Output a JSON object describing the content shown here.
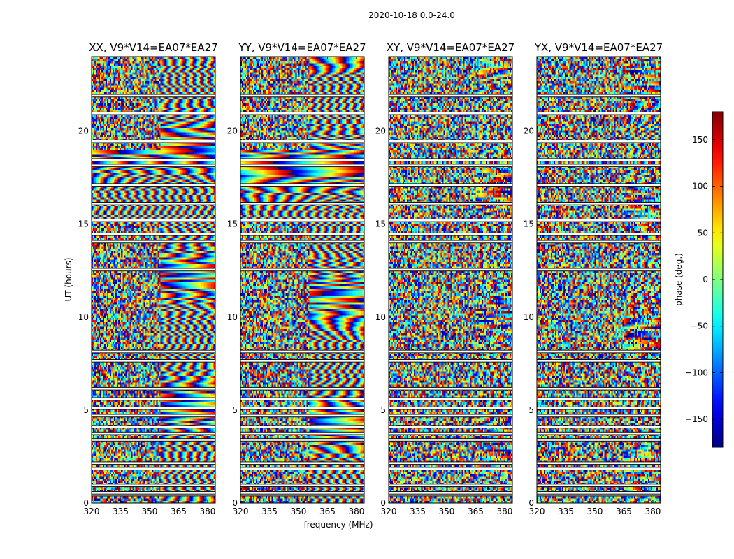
{
  "figure": {
    "suptitle": "2020-10-18 0.0-24.0",
    "xlabel": "frequency (MHz)",
    "ylabel": "UT (hours)"
  },
  "colorbar": {
    "label": "phase (deg.)",
    "range": [
      -180,
      180
    ],
    "ticks": [
      -150,
      -100,
      -50,
      0,
      50,
      100,
      150
    ],
    "tick_labels": [
      "−150",
      "−100",
      "−50",
      "0",
      "50",
      "100",
      "150"
    ],
    "colormap": "jet",
    "colors": [
      "#00007f",
      "#0000ff",
      "#00ffff",
      "#7fff7f",
      "#ffff00",
      "#ff0000",
      "#7f0000"
    ]
  },
  "chart_data": {
    "type": "heatmap",
    "description_units": {
      "x": "MHz",
      "y": "hours",
      "z": "deg"
    },
    "xlim": [
      320,
      384
    ],
    "ylim": [
      0,
      24
    ],
    "xticks": [
      320,
      335,
      350,
      365,
      380
    ],
    "yticks": [
      0,
      5,
      10,
      15,
      20
    ],
    "panels": [
      {
        "title": "XX, V9*V14=EA07*EA27",
        "show_yticks": true
      },
      {
        "title": "YY, V9*V14=EA07*EA27",
        "show_yticks": true
      },
      {
        "title": "XY, V9*V14=EA07*EA27",
        "show_yticks": true
      },
      {
        "title": "YX, V9*V14=EA07*EA27",
        "show_yticks": true
      }
    ],
    "flagged_rows_hours": [
      0.45,
      0.55,
      0.95,
      1.85,
      2.15,
      3.4,
      3.75,
      4.1,
      4.7,
      5.1,
      5.6,
      6.15,
      7.65,
      8.15,
      12.55,
      14.05,
      14.45,
      15.2,
      16.1,
      17.1,
      18.15,
      18.45,
      19.45,
      20.95,
      21.9
    ],
    "flagged_row_thickness_hours": 0.1
  }
}
